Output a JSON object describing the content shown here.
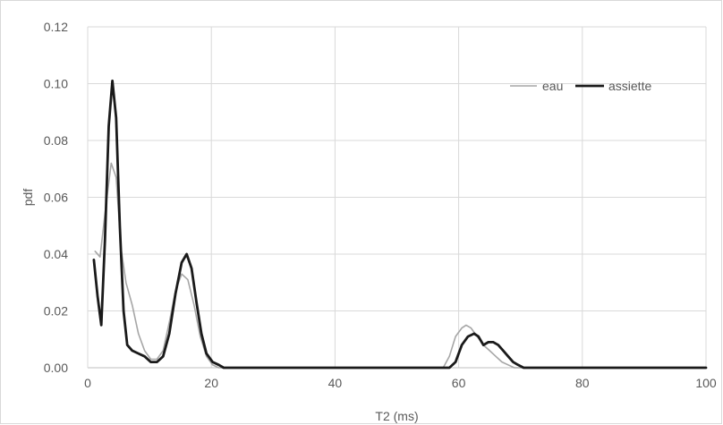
{
  "chart_data": {
    "type": "line",
    "title": "",
    "xlabel": "T2 (ms)",
    "ylabel": "pdf",
    "xlim": [
      0,
      100
    ],
    "ylim": [
      0,
      0.12
    ],
    "x_ticks": [
      "0",
      "20",
      "40",
      "60",
      "80",
      "100"
    ],
    "y_ticks": [
      "0.00",
      "0.02",
      "0.04",
      "0.06",
      "0.08",
      "0.10",
      "0.12"
    ],
    "grid": true,
    "legend_position": "top-right",
    "series": [
      {
        "name": "eau",
        "color": "#a6a6a6",
        "x": [
          1.2,
          2.0,
          3.0,
          3.8,
          4.6,
          5.4,
          6.2,
          7.2,
          8.2,
          9.2,
          10.2,
          11.2,
          12.2,
          13.2,
          14.2,
          15.2,
          16.2,
          17.2,
          18.2,
          19.2,
          20.2,
          21.2,
          22.0,
          30,
          40,
          50,
          57.5,
          58.5,
          59.5,
          60.5,
          61.2,
          62.0,
          63.0,
          64.0,
          65.0,
          66.0,
          67.0,
          68.0,
          69.0,
          70.0,
          80,
          90,
          100
        ],
        "y": [
          0.041,
          0.039,
          0.058,
          0.072,
          0.067,
          0.042,
          0.03,
          0.022,
          0.012,
          0.006,
          0.003,
          0.003,
          0.006,
          0.016,
          0.027,
          0.033,
          0.031,
          0.022,
          0.011,
          0.004,
          0.001,
          0.0,
          0.0,
          0.0,
          0.0,
          0.0,
          0.0,
          0.004,
          0.011,
          0.014,
          0.015,
          0.014,
          0.011,
          0.008,
          0.006,
          0.004,
          0.002,
          0.001,
          0.0,
          0.0,
          0.0,
          0.0,
          0.0
        ]
      },
      {
        "name": "assiette",
        "color": "#1a1a1a",
        "x": [
          1.0,
          1.6,
          2.2,
          2.8,
          3.4,
          4.0,
          4.6,
          5.2,
          5.8,
          6.4,
          7.2,
          8.2,
          9.2,
          10.2,
          11.2,
          12.2,
          13.2,
          14.2,
          15.2,
          16.0,
          16.8,
          17.6,
          18.4,
          19.2,
          20.2,
          21.2,
          22.0,
          30,
          40,
          50,
          58.5,
          59.5,
          60.5,
          61.5,
          62.5,
          63.2,
          64.0,
          64.8,
          65.6,
          66.4,
          67.2,
          68.0,
          68.8,
          69.6,
          70.5,
          80,
          90,
          100
        ],
        "y": [
          0.038,
          0.025,
          0.015,
          0.045,
          0.085,
          0.101,
          0.088,
          0.05,
          0.02,
          0.008,
          0.006,
          0.005,
          0.004,
          0.002,
          0.002,
          0.004,
          0.012,
          0.026,
          0.037,
          0.04,
          0.035,
          0.023,
          0.012,
          0.005,
          0.002,
          0.001,
          0.0,
          0.0,
          0.0,
          0.0,
          0.0,
          0.002,
          0.008,
          0.011,
          0.012,
          0.011,
          0.008,
          0.009,
          0.009,
          0.008,
          0.006,
          0.004,
          0.002,
          0.001,
          0.0,
          0.0,
          0.0,
          0.0
        ]
      }
    ]
  }
}
